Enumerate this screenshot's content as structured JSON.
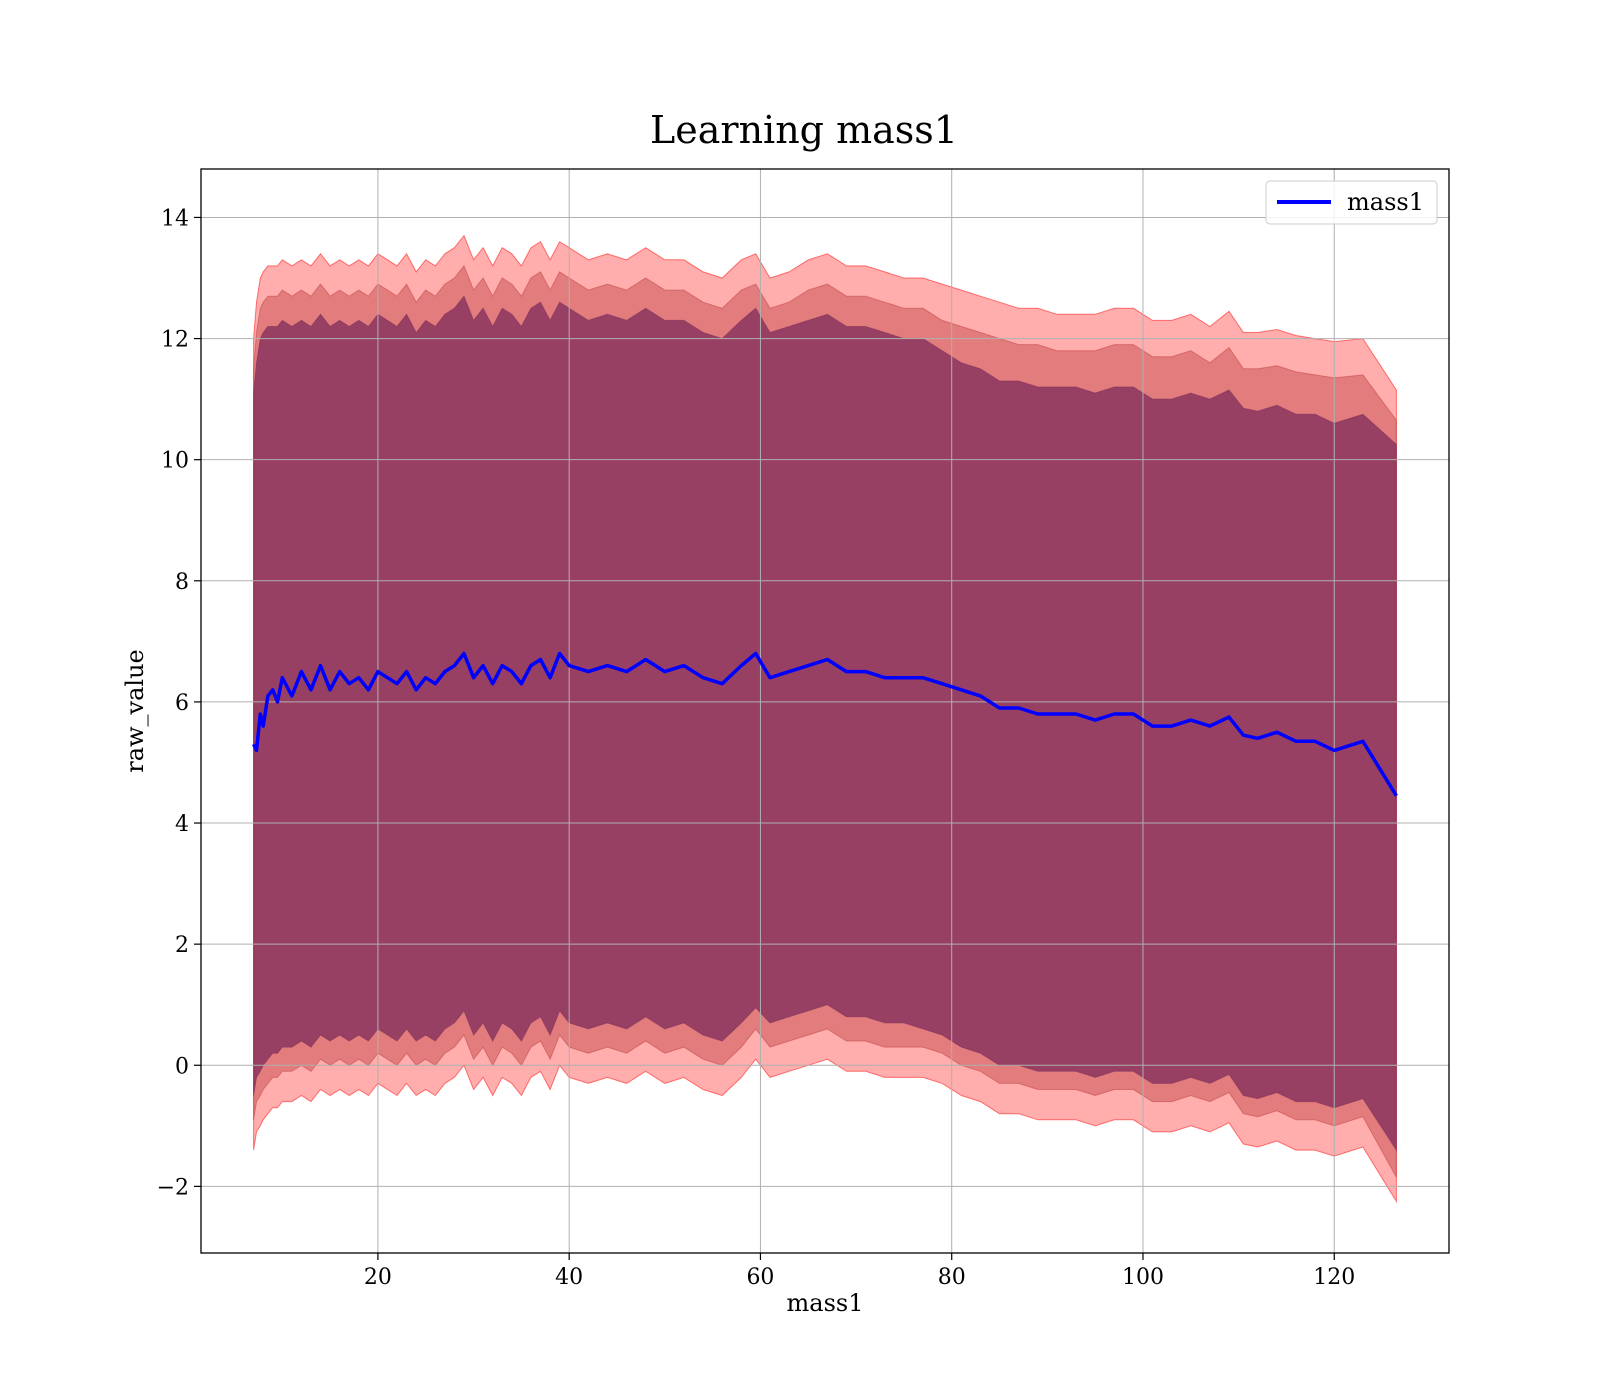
{
  "chart_data": {
    "type": "line",
    "title": "Learning mass1",
    "xlabel": "mass1",
    "ylabel": "raw_value",
    "xlim": [
      1.5,
      132
    ],
    "ylim": [
      -3.1,
      14.8
    ],
    "xticks": [
      20,
      40,
      60,
      80,
      100,
      120
    ],
    "yticks": [
      -2,
      0,
      2,
      4,
      6,
      8,
      10,
      12,
      14
    ],
    "xtick_labels": [
      "20",
      "40",
      "60",
      "80",
      "100",
      "120"
    ],
    "ytick_labels": [
      "−2",
      "0",
      "2",
      "4",
      "6",
      "8",
      "10",
      "12",
      "14"
    ],
    "grid": true,
    "legend": {
      "placement": "top-right",
      "entries": [
        "mass1"
      ]
    },
    "colors": {
      "line": "#0000ff",
      "band_outer": "#ff0000",
      "band_middle": "#c04040",
      "band_inner": "#7a2a5a",
      "grid": "#b0b0b0"
    },
    "series": [
      {
        "name": "mass1",
        "x": [
          7.0,
          7.3,
          7.7,
          8.0,
          8.5,
          9.0,
          9.5,
          10.0,
          11.0,
          12.0,
          13.0,
          14.0,
          15.0,
          16.0,
          17.0,
          18.0,
          19.0,
          20.0,
          21.0,
          22.0,
          23.0,
          24.0,
          25.0,
          26.0,
          27.0,
          28.0,
          29.0,
          30.0,
          31.0,
          32.0,
          33.0,
          34.0,
          35.0,
          36.0,
          37.0,
          38.0,
          39.0,
          40.0,
          42.0,
          44.0,
          46.0,
          48.0,
          50.0,
          52.0,
          54.0,
          56.0,
          58.0,
          59.5,
          61.0,
          63.0,
          65.0,
          67.0,
          69.0,
          71.0,
          73.0,
          75.0,
          77.0,
          79.0,
          81.0,
          83.0,
          85.0,
          87.0,
          89.0,
          91.0,
          93.0,
          95.0,
          97.0,
          99.0,
          101.0,
          103.0,
          105.0,
          107.0,
          109.0,
          110.5,
          112.0,
          114.0,
          116.0,
          118.0,
          120.0,
          123.0,
          126.5
        ],
        "y": [
          5.3,
          5.2,
          5.8,
          5.6,
          6.1,
          6.2,
          6.0,
          6.4,
          6.1,
          6.5,
          6.2,
          6.6,
          6.2,
          6.5,
          6.3,
          6.4,
          6.2,
          6.5,
          6.4,
          6.3,
          6.5,
          6.2,
          6.4,
          6.3,
          6.5,
          6.6,
          6.8,
          6.4,
          6.6,
          6.3,
          6.6,
          6.5,
          6.3,
          6.6,
          6.7,
          6.4,
          6.8,
          6.6,
          6.5,
          6.6,
          6.5,
          6.7,
          6.5,
          6.6,
          6.4,
          6.3,
          6.6,
          6.8,
          6.4,
          6.5,
          6.6,
          6.7,
          6.5,
          6.5,
          6.4,
          6.4,
          6.4,
          6.3,
          6.2,
          6.1,
          5.9,
          5.9,
          5.8,
          5.8,
          5.8,
          5.7,
          5.8,
          5.8,
          5.6,
          5.6,
          5.7,
          5.6,
          5.75,
          5.45,
          5.4,
          5.5,
          5.35,
          5.35,
          5.2,
          5.35,
          4.45
        ]
      }
    ],
    "bands": [
      {
        "upper": [
          12.0,
          12.6,
          13.0,
          13.1,
          13.2,
          13.2,
          13.2,
          13.3,
          13.2,
          13.3,
          13.2,
          13.4,
          13.2,
          13.3,
          13.2,
          13.3,
          13.2,
          13.4,
          13.3,
          13.2,
          13.4,
          13.1,
          13.3,
          13.2,
          13.4,
          13.5,
          13.7,
          13.3,
          13.5,
          13.2,
          13.5,
          13.4,
          13.2,
          13.5,
          13.6,
          13.3,
          13.6,
          13.5,
          13.3,
          13.4,
          13.3,
          13.5,
          13.3,
          13.3,
          13.1,
          13.0,
          13.3,
          13.4,
          13.0,
          13.1,
          13.3,
          13.4,
          13.2,
          13.2,
          13.1,
          13.0,
          13.0,
          12.9,
          12.8,
          12.7,
          12.6,
          12.5,
          12.5,
          12.4,
          12.4,
          12.4,
          12.5,
          12.5,
          12.3,
          12.3,
          12.4,
          12.2,
          12.45,
          12.1,
          12.1,
          12.15,
          12.05,
          12.0,
          11.95,
          12.0,
          11.15
        ],
        "lower": [
          -1.4,
          -1.1,
          -1.0,
          -0.9,
          -0.8,
          -0.7,
          -0.7,
          -0.6,
          -0.6,
          -0.5,
          -0.6,
          -0.4,
          -0.5,
          -0.4,
          -0.5,
          -0.4,
          -0.5,
          -0.3,
          -0.4,
          -0.5,
          -0.3,
          -0.5,
          -0.4,
          -0.5,
          -0.3,
          -0.2,
          0.0,
          -0.4,
          -0.2,
          -0.5,
          -0.2,
          -0.3,
          -0.5,
          -0.2,
          -0.1,
          -0.4,
          0.0,
          -0.2,
          -0.3,
          -0.2,
          -0.3,
          -0.1,
          -0.3,
          -0.2,
          -0.4,
          -0.5,
          -0.2,
          0.1,
          -0.2,
          -0.1,
          0.0,
          0.1,
          -0.1,
          -0.1,
          -0.2,
          -0.2,
          -0.2,
          -0.3,
          -0.5,
          -0.6,
          -0.8,
          -0.8,
          -0.9,
          -0.9,
          -0.9,
          -1.0,
          -0.9,
          -0.9,
          -1.1,
          -1.1,
          -1.0,
          -1.1,
          -0.95,
          -1.3,
          -1.35,
          -1.25,
          -1.4,
          -1.4,
          -1.5,
          -1.35,
          -2.25
        ]
      },
      {
        "upper": [
          11.5,
          12.1,
          12.5,
          12.6,
          12.7,
          12.7,
          12.7,
          12.8,
          12.7,
          12.8,
          12.7,
          12.9,
          12.7,
          12.8,
          12.7,
          12.8,
          12.7,
          12.9,
          12.8,
          12.7,
          12.9,
          12.6,
          12.8,
          12.7,
          12.9,
          13.0,
          13.2,
          12.8,
          13.0,
          12.7,
          13.0,
          12.9,
          12.7,
          13.0,
          13.1,
          12.8,
          13.1,
          13.0,
          12.8,
          12.9,
          12.8,
          13.0,
          12.8,
          12.8,
          12.6,
          12.5,
          12.8,
          12.9,
          12.5,
          12.6,
          12.8,
          12.9,
          12.7,
          12.7,
          12.6,
          12.5,
          12.5,
          12.3,
          12.2,
          12.1,
          12.0,
          11.9,
          11.9,
          11.8,
          11.8,
          11.8,
          11.9,
          11.9,
          11.7,
          11.7,
          11.8,
          11.6,
          11.85,
          11.5,
          11.5,
          11.55,
          11.45,
          11.4,
          11.35,
          11.4,
          10.65
        ],
        "lower": [
          -0.9,
          -0.6,
          -0.5,
          -0.4,
          -0.3,
          -0.2,
          -0.2,
          -0.1,
          -0.1,
          0.0,
          -0.1,
          0.1,
          0.0,
          0.1,
          0.0,
          0.1,
          0.0,
          0.2,
          0.1,
          0.0,
          0.2,
          0.0,
          0.1,
          0.0,
          0.2,
          0.3,
          0.5,
          0.1,
          0.3,
          0.0,
          0.3,
          0.2,
          0.0,
          0.3,
          0.4,
          0.1,
          0.5,
          0.3,
          0.2,
          0.3,
          0.2,
          0.4,
          0.2,
          0.3,
          0.1,
          0.0,
          0.3,
          0.6,
          0.3,
          0.4,
          0.5,
          0.6,
          0.4,
          0.4,
          0.3,
          0.3,
          0.3,
          0.2,
          0.0,
          -0.1,
          -0.3,
          -0.3,
          -0.4,
          -0.4,
          -0.4,
          -0.5,
          -0.4,
          -0.4,
          -0.6,
          -0.6,
          -0.5,
          -0.6,
          -0.45,
          -0.8,
          -0.85,
          -0.75,
          -0.9,
          -0.9,
          -1.0,
          -0.85,
          -1.85
        ]
      },
      {
        "upper": [
          11.1,
          11.6,
          12.0,
          12.1,
          12.2,
          12.2,
          12.2,
          12.3,
          12.2,
          12.3,
          12.2,
          12.4,
          12.2,
          12.3,
          12.2,
          12.3,
          12.2,
          12.4,
          12.3,
          12.2,
          12.4,
          12.1,
          12.3,
          12.2,
          12.4,
          12.5,
          12.7,
          12.3,
          12.5,
          12.2,
          12.5,
          12.4,
          12.2,
          12.5,
          12.6,
          12.3,
          12.6,
          12.5,
          12.3,
          12.4,
          12.3,
          12.5,
          12.3,
          12.3,
          12.1,
          12.0,
          12.3,
          12.5,
          12.1,
          12.2,
          12.3,
          12.4,
          12.2,
          12.2,
          12.1,
          12.0,
          12.0,
          11.8,
          11.6,
          11.5,
          11.3,
          11.3,
          11.2,
          11.2,
          11.2,
          11.1,
          11.2,
          11.2,
          11.0,
          11.0,
          11.1,
          11.0,
          11.15,
          10.85,
          10.8,
          10.9,
          10.75,
          10.75,
          10.6,
          10.75,
          10.25
        ],
        "lower": [
          -0.5,
          -0.2,
          -0.1,
          0.0,
          0.1,
          0.2,
          0.2,
          0.3,
          0.3,
          0.4,
          0.3,
          0.5,
          0.4,
          0.5,
          0.4,
          0.5,
          0.4,
          0.6,
          0.5,
          0.4,
          0.6,
          0.4,
          0.5,
          0.4,
          0.6,
          0.7,
          0.9,
          0.5,
          0.7,
          0.4,
          0.7,
          0.6,
          0.4,
          0.7,
          0.8,
          0.5,
          0.9,
          0.7,
          0.6,
          0.7,
          0.6,
          0.8,
          0.6,
          0.7,
          0.5,
          0.4,
          0.7,
          0.95,
          0.7,
          0.8,
          0.9,
          1.0,
          0.8,
          0.8,
          0.7,
          0.7,
          0.6,
          0.5,
          0.3,
          0.2,
          0.0,
          0.0,
          -0.1,
          -0.1,
          -0.1,
          -0.2,
          -0.1,
          -0.1,
          -0.3,
          -0.3,
          -0.2,
          -0.3,
          -0.15,
          -0.5,
          -0.55,
          -0.45,
          -0.6,
          -0.6,
          -0.7,
          -0.55,
          -1.4
        ]
      }
    ]
  }
}
